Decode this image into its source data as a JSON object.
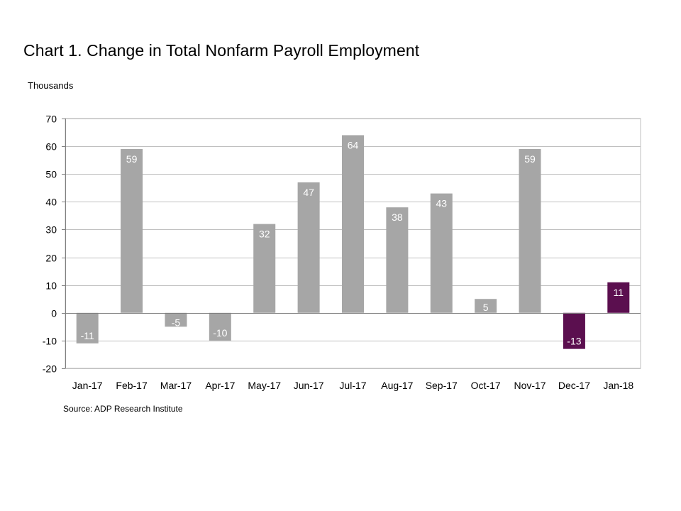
{
  "title": "Chart 1. Change in Total Nonfarm Payroll Employment",
  "unit": "Thousands",
  "source": "Source: ADP Research Institute",
  "chart_data": {
    "type": "bar",
    "categories": [
      "Jan-17",
      "Feb-17",
      "Mar-17",
      "Apr-17",
      "May-17",
      "Jun-17",
      "Jul-17",
      "Aug-17",
      "Sep-17",
      "Oct-17",
      "Nov-17",
      "Dec-17",
      "Jan-18"
    ],
    "values": [
      -11,
      59,
      -5,
      -10,
      32,
      47,
      64,
      38,
      43,
      5,
      59,
      -13,
      11
    ],
    "data_labels": [
      "-11",
      "59",
      "-5",
      "-10",
      "32",
      "47",
      "64",
      "38",
      "43",
      "5",
      "59",
      "-13",
      "11"
    ],
    "highlight": [
      false,
      false,
      false,
      false,
      false,
      false,
      false,
      false,
      false,
      false,
      false,
      true,
      true
    ],
    "colors": {
      "bar": "#a6a6a6",
      "highlight": "#5b0f4f",
      "grid": "#bfbfbf",
      "axis": "#808080"
    },
    "ylim": [
      -20,
      70
    ],
    "yticks": [
      70,
      60,
      50,
      40,
      30,
      20,
      10,
      0,
      -10,
      -20
    ],
    "grid": true,
    "legend": "none"
  }
}
